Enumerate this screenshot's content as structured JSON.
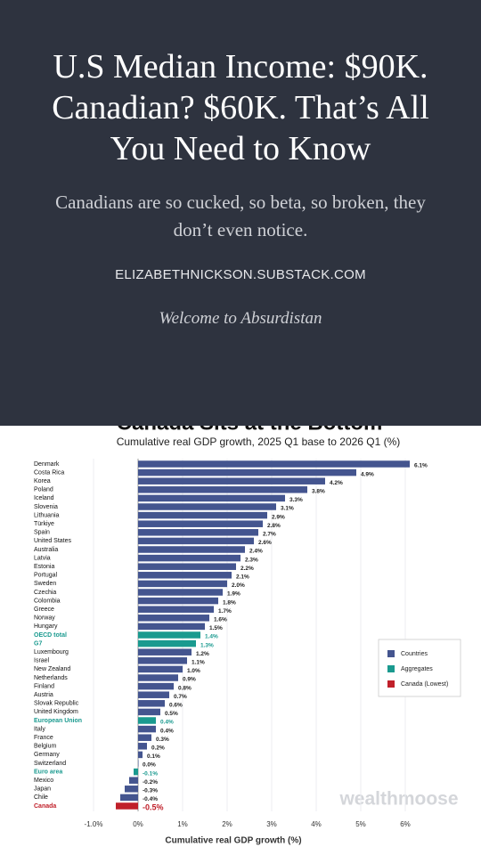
{
  "header": {
    "title": "U.S Median Income: $90K. Canadian? $60K. That’s All You Need to Know",
    "subtitle": "Canadians are so cucked, so beta, so broken, they don’t even notice.",
    "site": "ELIZABETHNICKSON.SUBSTACK.COM",
    "tagline": "Welcome to Absurdistan"
  },
  "chart_data": {
    "type": "barh",
    "title": "Canada Sits at the Bottom",
    "subtitle": "Cumulative real GDP growth, 2025 Q1 base to 2026 Q1 (%)",
    "xlabel": "Cumulative real GDP growth (%)",
    "watermark": "wealthmoose",
    "categories": [
      "Denmark",
      "Costa Rica",
      "Korea",
      "Poland",
      "Iceland",
      "Slovenia",
      "Lithuania",
      "Türkiye",
      "Spain",
      "United States",
      "Australia",
      "Latvia",
      "Estonia",
      "Portugal",
      "Sweden",
      "Czechia",
      "Colombia",
      "Greece",
      "Norway",
      "Hungary",
      "OECD total",
      "G7",
      "Luxembourg",
      "Israel",
      "New Zealand",
      "Netherlands",
      "Finland",
      "Austria",
      "Slovak Republic",
      "United Kingdom",
      "European Union",
      "Italy",
      "France",
      "Belgium",
      "Germany",
      "Switzerland",
      "Euro area",
      "Mexico",
      "Japan",
      "Chile",
      "Canada"
    ],
    "values": [
      6.1,
      4.9,
      4.2,
      3.8,
      3.3,
      3.1,
      2.9,
      2.8,
      2.7,
      2.6,
      2.4,
      2.3,
      2.2,
      2.1,
      2.0,
      1.9,
      1.8,
      1.7,
      1.6,
      1.5,
      1.4,
      1.3,
      1.2,
      1.1,
      1.0,
      0.9,
      0.8,
      0.7,
      0.6,
      0.5,
      0.4,
      0.4,
      0.3,
      0.2,
      0.1,
      0.0,
      -0.1,
      -0.2,
      -0.3,
      -0.4,
      -0.5
    ],
    "value_labels": [
      "6.1%",
      "4.9%",
      "4.2%",
      "3.8%",
      "3.3%",
      "3.1%",
      "2.9%",
      "2.8%",
      "2.7%",
      "2.6%",
      "2.4%",
      "2.3%",
      "2.2%",
      "2.1%",
      "2.0%",
      "1.9%",
      "1.8%",
      "1.7%",
      "1.6%",
      "1.5%",
      "1.4%",
      "1.3%",
      "1.2%",
      "1.1%",
      "1.0%",
      "0.9%",
      "0.8%",
      "0.7%",
      "0.6%",
      "0.5%",
      "0.4%",
      "0.4%",
      "0.3%",
      "0.2%",
      "0.1%",
      "0.0%",
      "-0.1%",
      "-0.2%",
      "-0.3%",
      "-0.4%",
      "-0.5%"
    ],
    "colors": [
      "#44558f",
      "#44558f",
      "#44558f",
      "#44558f",
      "#44558f",
      "#44558f",
      "#44558f",
      "#44558f",
      "#44558f",
      "#44558f",
      "#44558f",
      "#44558f",
      "#44558f",
      "#44558f",
      "#44558f",
      "#44558f",
      "#44558f",
      "#44558f",
      "#44558f",
      "#44558f",
      "#1a9a8f",
      "#1a9a8f",
      "#44558f",
      "#44558f",
      "#44558f",
      "#44558f",
      "#44558f",
      "#44558f",
      "#44558f",
      "#44558f",
      "#1a9a8f",
      "#44558f",
      "#44558f",
      "#44558f",
      "#44558f",
      "#44558f",
      "#1a9a8f",
      "#44558f",
      "#44558f",
      "#44558f",
      "#c0202a"
    ],
    "legend": [
      {
        "label": "Countries",
        "color": "#44558f"
      },
      {
        "label": "Aggregates",
        "color": "#1a9a8f"
      },
      {
        "label": "Canada (Lowest)",
        "color": "#c0202a"
      }
    ],
    "legend_position": "right",
    "xlim": [
      -1.0,
      7.0
    ],
    "xticks": [
      {
        "value": -1.0,
        "label": "-1.0%"
      },
      {
        "value": 0,
        "label": "0%"
      },
      {
        "value": 1,
        "label": "1%"
      },
      {
        "value": 2,
        "label": "2%"
      },
      {
        "value": 3,
        "label": "3%"
      },
      {
        "value": 4,
        "label": "4%"
      },
      {
        "value": 5,
        "label": "5%"
      },
      {
        "value": 6,
        "label": "6%"
      }
    ],
    "grid": true
  }
}
